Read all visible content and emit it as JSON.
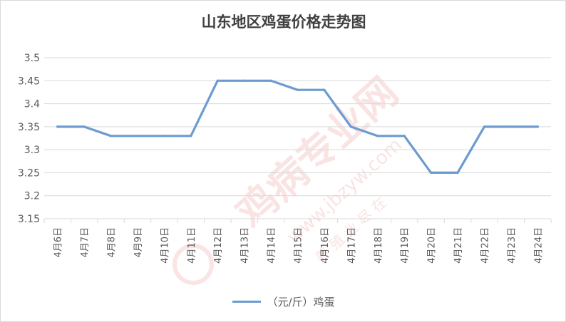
{
  "chart_data": {
    "type": "line",
    "title": "山东地区鸡蛋价格走势图",
    "categories": [
      "4月6日",
      "4月7日",
      "4月8日",
      "4月9日",
      "4月10日",
      "4月11日",
      "4月12日",
      "4月13日",
      "4月14日",
      "4月15日",
      "4月16日",
      "4月17日",
      "4月18日",
      "4月19日",
      "4月20日",
      "4月21日",
      "4月22日",
      "4月23日",
      "4月24日"
    ],
    "series": [
      {
        "name": "（元/斤）鸡蛋",
        "values": [
          3.35,
          3.35,
          3.33,
          3.33,
          3.33,
          3.33,
          3.45,
          3.45,
          3.45,
          3.43,
          3.43,
          3.35,
          3.33,
          3.33,
          3.25,
          3.25,
          3.35,
          3.35,
          3.35
        ]
      }
    ],
    "ylim": [
      3.15,
      3.5
    ],
    "yticks": [
      "3.15",
      "3.2",
      "3.25",
      "3.3",
      "3.35",
      "3.4",
      "3.45",
      "3.5"
    ],
    "grid": true,
    "legend": "bottom",
    "xlabel": "",
    "ylabel": "",
    "line_color": "#6b9bd1",
    "grid_color": "#d9d9d9",
    "text_color": "#595959",
    "watermark_color": "#f4c2c2"
  },
  "watermark": {
    "text": "鸡病专业网",
    "url": "www.jbzyw.com",
    "slogan": "养 殖 业 尽 在"
  }
}
